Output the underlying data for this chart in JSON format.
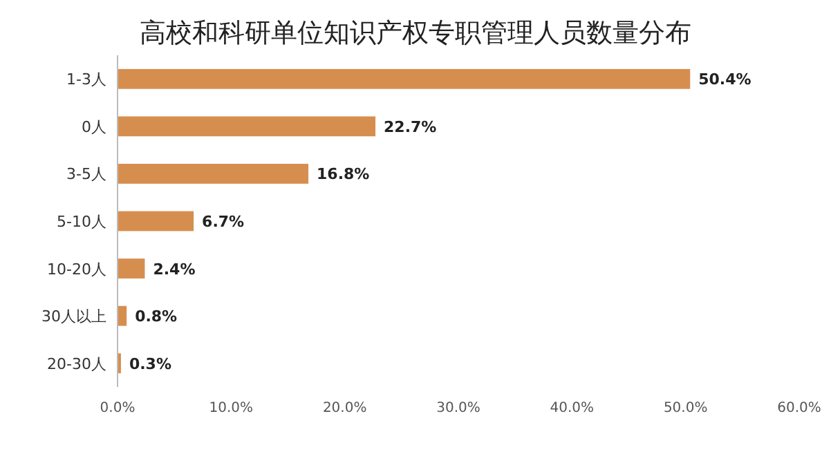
{
  "chart_data": {
    "type": "bar",
    "orientation": "horizontal",
    "title": "高校和科研单位知识产权专职管理人员数量分布",
    "categories": [
      "1-3人",
      "0人",
      "3-5人",
      "5-10人",
      "10-20人",
      "30人以上",
      "20-30人"
    ],
    "values": [
      50.4,
      22.7,
      16.8,
      6.7,
      2.4,
      0.8,
      0.3
    ],
    "value_labels": [
      "50.4%",
      "22.7%",
      "16.8%",
      "6.7%",
      "2.4%",
      "0.8%",
      "0.3%"
    ],
    "color": "#d68e4f",
    "xlim": [
      0,
      60
    ],
    "xticks": [
      {
        "value": 0,
        "label": "0.0%"
      },
      {
        "value": 10,
        "label": "10.0%"
      },
      {
        "value": 20,
        "label": "20.0%"
      },
      {
        "value": 30,
        "label": "30.0%"
      },
      {
        "value": 40,
        "label": "40.0%"
      },
      {
        "value": 50,
        "label": "50.0%"
      },
      {
        "value": 60,
        "label": "60.0%"
      }
    ]
  }
}
